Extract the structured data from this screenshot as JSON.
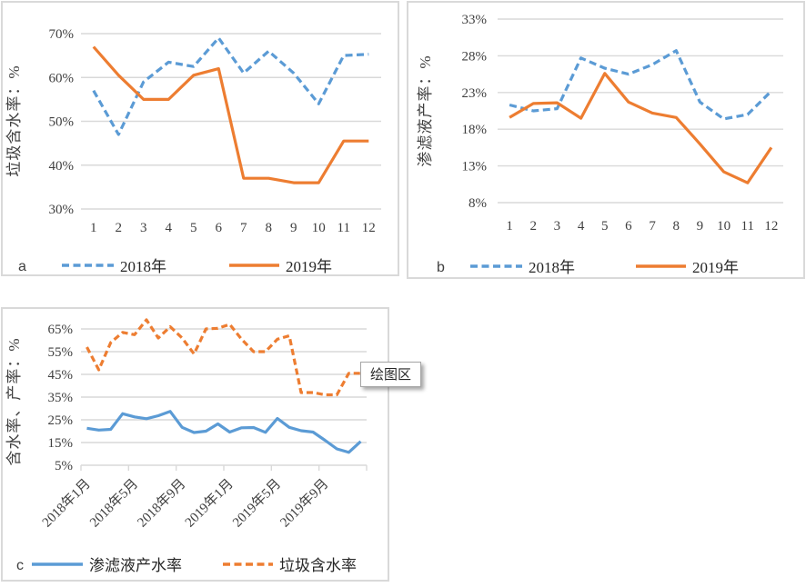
{
  "colors": {
    "blue": "#5b9bd5",
    "orange": "#ed7d31",
    "grid": "#d9d9d9",
    "text": "#3f3f3f"
  },
  "tooltip": {
    "label": "绘图区"
  },
  "chart_data": [
    {
      "id": "a",
      "type": "line",
      "panel_letter": "a",
      "ylabel": "垃圾含水率：%",
      "y_axis": {
        "min": 30,
        "max": 70,
        "step": 10,
        "unit": "%"
      },
      "categories": [
        "1",
        "2",
        "3",
        "4",
        "5",
        "6",
        "7",
        "8",
        "9",
        "10",
        "11",
        "12"
      ],
      "legend_position": "bottom",
      "grid": true,
      "series": [
        {
          "name": "2018年",
          "color": "blue",
          "dashed": true,
          "values": [
            57,
            47,
            59,
            63.5,
            62.5,
            69,
            61,
            66,
            61,
            54,
            65,
            65.3
          ]
        },
        {
          "name": "2019年",
          "color": "orange",
          "dashed": false,
          "values": [
            67,
            60.5,
            55,
            55,
            60.5,
            62,
            37,
            37,
            36,
            36,
            45.5,
            45.5
          ]
        }
      ]
    },
    {
      "id": "b",
      "type": "line",
      "panel_letter": "b",
      "ylabel": "渗滤液产率：%",
      "y_axis": {
        "min": 8,
        "max": 33,
        "step": 5,
        "unit": "%"
      },
      "categories": [
        "1",
        "2",
        "3",
        "4",
        "5",
        "6",
        "7",
        "8",
        "9",
        "10",
        "11",
        "12"
      ],
      "legend_position": "bottom",
      "grid": true,
      "series": [
        {
          "name": "2018年",
          "color": "blue",
          "dashed": true,
          "values": [
            21.3,
            20.5,
            20.8,
            27.7,
            26.3,
            25.5,
            26.8,
            28.7,
            21.7,
            19.4,
            20,
            23.2
          ]
        },
        {
          "name": "2019年",
          "color": "orange",
          "dashed": false,
          "values": [
            19.6,
            21.5,
            21.6,
            19.5,
            25.6,
            21.7,
            20.2,
            19.6,
            16,
            12.2,
            10.7,
            15.5
          ]
        }
      ]
    },
    {
      "id": "c",
      "type": "line",
      "panel_letter": "c",
      "ylabel": "含水率、产率：%",
      "y_axis": {
        "min": 5,
        "max": 65,
        "step": 10,
        "unit": "%"
      },
      "x_tick_labels": [
        "2018年1月",
        "2018年5月",
        "2018年9月",
        "2019年1月",
        "2019年5月",
        "2019年9月"
      ],
      "x_tick_every": 4,
      "legend_position": "bottom",
      "grid": true,
      "series": [
        {
          "name": "渗滤液产水率",
          "color": "blue",
          "dashed": false,
          "values": [
            21.3,
            20.5,
            20.8,
            27.7,
            26.3,
            25.5,
            26.8,
            28.7,
            21.7,
            19.4,
            20,
            23.2,
            19.6,
            21.5,
            21.6,
            19.5,
            25.6,
            21.7,
            20.2,
            19.6,
            16,
            12.2,
            10.7,
            15.5
          ]
        },
        {
          "name": "垃圾含水率",
          "color": "orange",
          "dashed": true,
          "values": [
            57,
            47,
            59,
            63.5,
            62.5,
            69,
            61,
            66,
            61,
            54,
            65,
            65.3,
            67,
            60.5,
            55,
            55,
            60.5,
            62,
            37,
            37,
            36,
            36,
            45.5,
            45.5
          ]
        }
      ]
    }
  ]
}
